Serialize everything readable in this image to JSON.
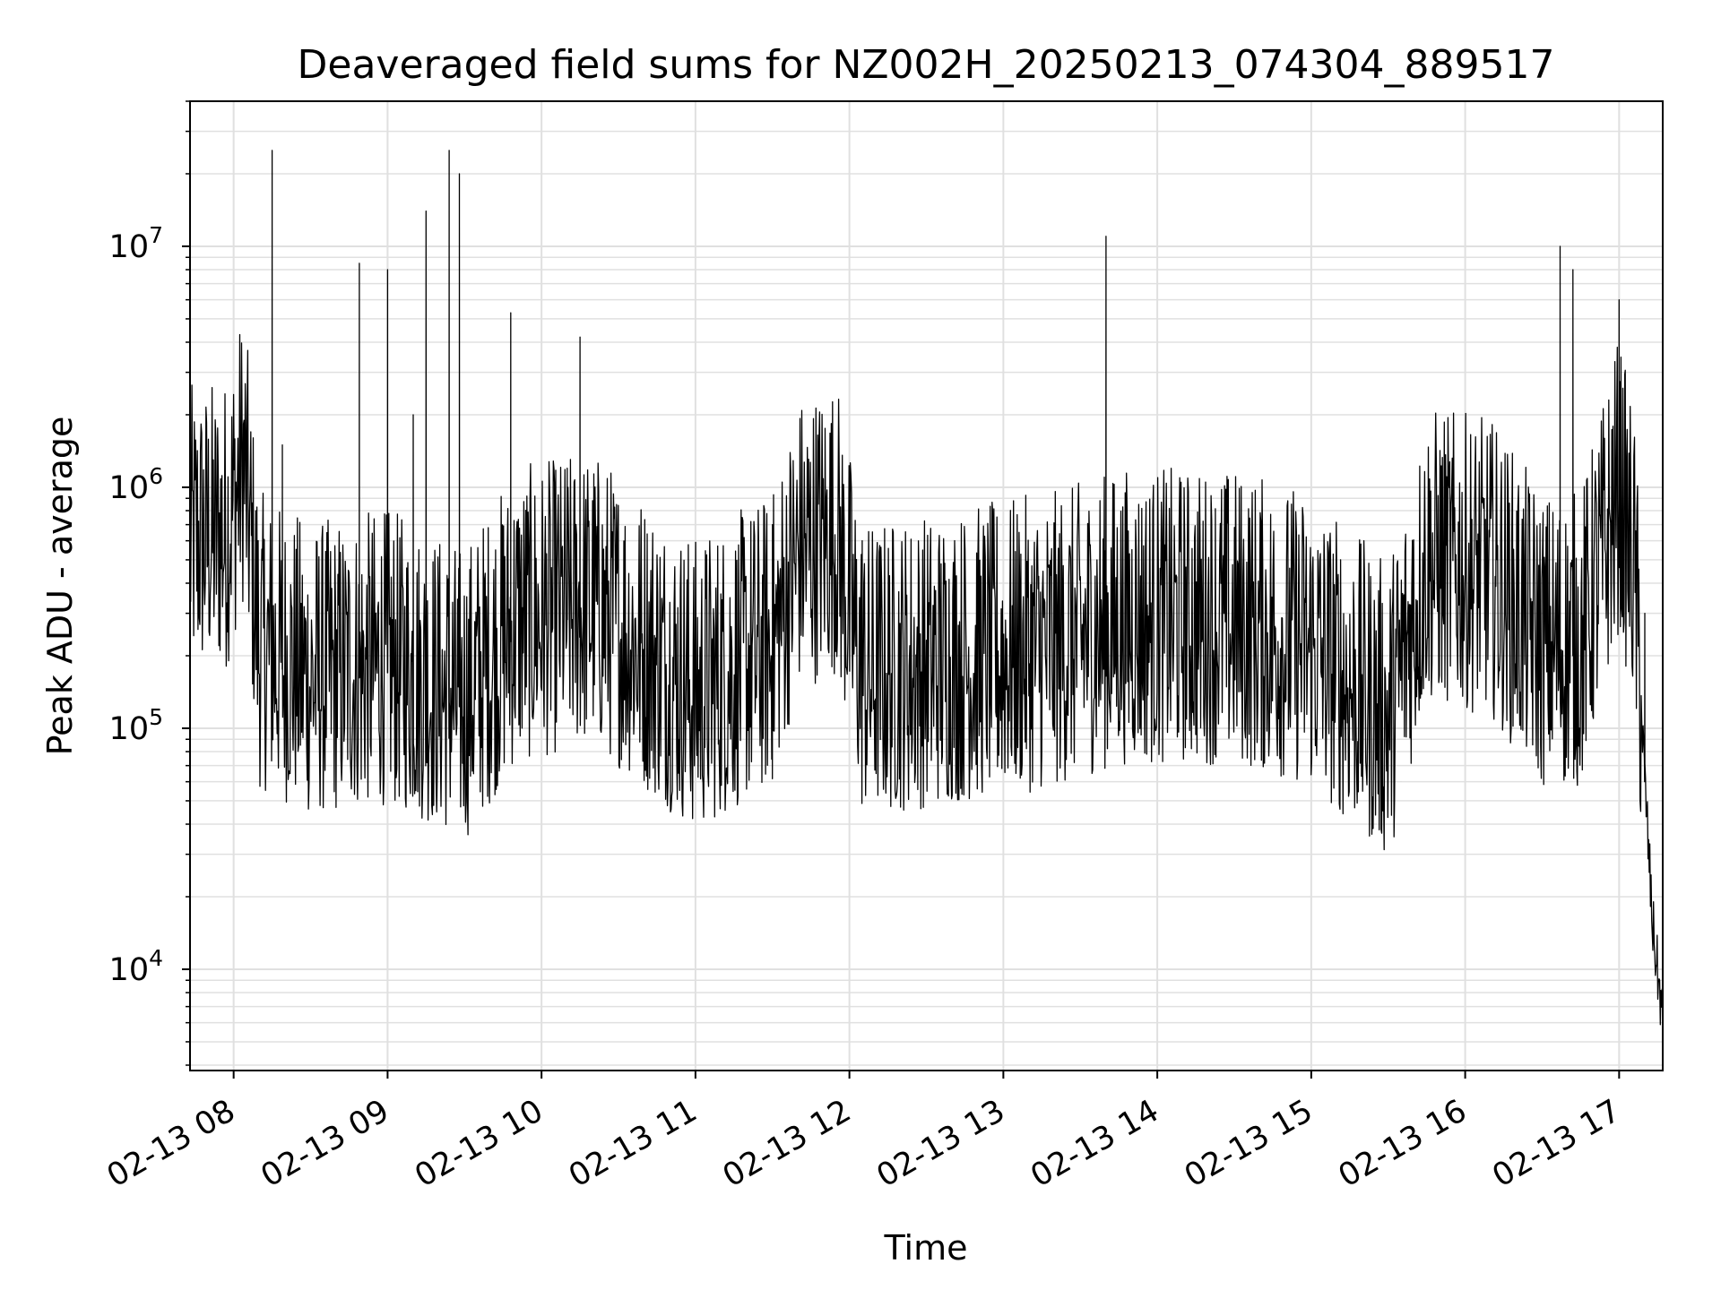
{
  "chart_data": {
    "type": "line",
    "title": "Deaveraged field sums for NZ002H_20250213_074304_889517",
    "xlabel": "Time",
    "ylabel": "Peak ADU - average",
    "yscale": "log",
    "grid": true,
    "x_tick_labels": [
      "02-13 08",
      "02-13 09",
      "02-13 10",
      "02-13 11",
      "02-13 12",
      "02-13 13",
      "02-13 14",
      "02-13 15",
      "02-13 16",
      "02-13 17"
    ],
    "y_tick_labels": [
      {
        "base": "10",
        "exp": "4"
      },
      {
        "base": "10",
        "exp": "5"
      },
      {
        "base": "10",
        "exp": "6"
      },
      {
        "base": "10",
        "exp": "7"
      }
    ],
    "xlim": [
      "02-13 07:43",
      "02-13 17:17"
    ],
    "ylim": [
      3800,
      40000000
    ],
    "line_color": "#000000",
    "grid_color": "#e0e0e0",
    "series": [
      {
        "x": [
          "02-13 07:43",
          "02-13 07:48",
          "02-13 07:53",
          "02-13 07:57",
          "02-13 08:00",
          "02-13 08:02",
          "02-13 08:04",
          "02-13 08:06",
          "02-13 08:08",
          "02-13 08:10",
          "02-13 08:12",
          "02-13 08:14",
          "02-13 08:15",
          "02-13 08:17",
          "02-13 08:19",
          "02-13 08:21",
          "02-13 08:25",
          "02-13 08:30",
          "02-13 08:35",
          "02-13 08:40",
          "02-13 08:45",
          "02-13 08:49",
          "02-13 08:50",
          "02-13 08:52",
          "02-13 08:55",
          "02-13 09:00",
          "02-13 09:02",
          "02-13 09:04",
          "02-13 09:06",
          "02-13 09:10",
          "02-13 09:15",
          "02-13 09:18",
          "02-13 09:20",
          "02-13 09:24",
          "02-13 09:26",
          "02-13 09:28",
          "02-13 09:30",
          "02-13 09:35",
          "02-13 09:40",
          "02-13 09:45",
          "02-13 09:48",
          "02-13 09:50",
          "02-13 09:55",
          "02-13 10:00",
          "02-13 10:05",
          "02-13 10:10",
          "02-13 10:15",
          "02-13 10:17",
          "02-13 10:20",
          "02-13 10:30",
          "02-13 10:40",
          "02-13 10:50",
          "02-13 11:00",
          "02-13 11:10",
          "02-13 11:20",
          "02-13 11:30",
          "02-13 11:35",
          "02-13 11:40",
          "02-13 11:45",
          "02-13 11:50",
          "02-13 11:55",
          "02-13 12:00",
          "02-13 12:05",
          "02-13 12:10",
          "02-13 12:15",
          "02-13 12:20",
          "02-13 12:30",
          "02-13 12:40",
          "02-13 12:50",
          "02-13 13:00",
          "02-13 13:10",
          "02-13 13:20",
          "02-13 13:30",
          "02-13 13:35",
          "02-13 13:39",
          "02-13 13:40",
          "02-13 13:41",
          "02-13 13:45",
          "02-13 13:50",
          "02-13 14:00",
          "02-13 14:10",
          "02-13 14:20",
          "02-13 14:30",
          "02-13 14:40",
          "02-13 14:50",
          "02-13 15:00",
          "02-13 15:10",
          "02-13 15:20",
          "02-13 15:25",
          "02-13 15:30",
          "02-13 15:35",
          "02-13 15:40",
          "02-13 15:50",
          "02-13 16:00",
          "02-13 16:10",
          "02-13 16:20",
          "02-13 16:25",
          "02-13 16:30",
          "02-13 16:35",
          "02-13 16:37",
          "02-13 16:40",
          "02-13 16:42",
          "02-13 16:45",
          "02-13 16:50",
          "02-13 16:55",
          "02-13 17:00",
          "02-13 17:02",
          "02-13 17:04",
          "02-13 17:06",
          "02-13 17:08",
          "02-13 17:10",
          "02-13 17:12",
          "02-13 17:14",
          "02-13 17:15",
          "02-13 17:16",
          "02-13 17:17"
        ],
        "values": [
          600000,
          450000,
          700000,
          550000,
          700000,
          1500000,
          3000000,
          1200000,
          600000,
          150000,
          250000,
          200000,
          25000000,
          120000,
          1500000,
          90000,
          60000,
          200000,
          80000,
          300000,
          100000,
          8500000,
          60000,
          150000,
          100000,
          8000000,
          300000,
          60000,
          130000,
          2000000,
          14000000,
          80000,
          400000,
          25000000,
          60000,
          20000000,
          70000,
          100000,
          80000,
          200000,
          5300000,
          300000,
          200000,
          400000,
          300000,
          1200000,
          4200000,
          200000,
          300000,
          250000,
          200000,
          150000,
          100000,
          120000,
          300000,
          700000,
          500000,
          600000,
          800000,
          1500000,
          600000,
          800000,
          600000,
          100000,
          120000,
          150000,
          200000,
          120000,
          300000,
          200000,
          250000,
          150000,
          300000,
          200000,
          150000,
          11000000,
          300000,
          200000,
          400000,
          250000,
          200000,
          300000,
          200000,
          350000,
          250000,
          200000,
          150000,
          100000,
          80000,
          80000,
          60000,
          90000,
          250000,
          350000,
          400000,
          300000,
          700000,
          600000,
          200000,
          10000000,
          100000,
          8000000,
          80000,
          300000,
          1000000,
          6000000,
          1300000,
          1000000,
          700000,
          400000,
          300000,
          60000,
          20000,
          10000,
          12000,
          5000
        ],
        "noise_amplitude": 0.55,
        "baseline": [
          [
            "02-13 07:43",
            550000
          ],
          [
            "02-13 07:57",
            600000
          ],
          [
            "02-13 08:04",
            1200000
          ],
          [
            "02-13 08:10",
            200000
          ],
          [
            "02-13 08:30",
            150000
          ],
          [
            "02-13 09:00",
            170000
          ],
          [
            "02-13 09:30",
            120000
          ],
          [
            "02-13 09:50",
            250000
          ],
          [
            "02-13 10:20",
            300000
          ],
          [
            "02-13 11:00",
            130000
          ],
          [
            "02-13 11:30",
            200000
          ],
          [
            "02-13 11:40",
            500000
          ],
          [
            "02-13 11:55",
            600000
          ],
          [
            "02-13 12:05",
            150000
          ],
          [
            "02-13 12:55",
            180000
          ],
          [
            "02-13 13:20",
            200000
          ],
          [
            "02-13 13:45",
            250000
          ],
          [
            "02-13 14:30",
            250000
          ],
          [
            "02-13 15:00",
            200000
          ],
          [
            "02-13 15:30",
            100000
          ],
          [
            "02-13 15:45",
            450000
          ],
          [
            "02-13 16:10",
            400000
          ],
          [
            "02-13 16:30",
            200000
          ],
          [
            "02-13 16:45",
            200000
          ],
          [
            "02-13 17:00",
            900000
          ],
          [
            "02-13 17:06",
            400000
          ],
          [
            "02-13 17:10",
            60000
          ],
          [
            "02-13 17:13",
            15000
          ],
          [
            "02-13 17:17",
            6000
          ]
        ]
      }
    ]
  }
}
